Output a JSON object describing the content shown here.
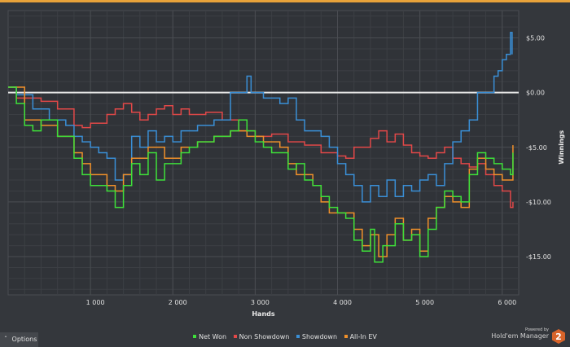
{
  "chart_data": {
    "type": "line",
    "xlabel": "Hands",
    "ylabel": "Winnings",
    "xlim": [
      0,
      6200
    ],
    "ylim": [
      -18.5,
      7.5
    ],
    "x_ticks": [
      {
        "v": 1000,
        "label": "1 000"
      },
      {
        "v": 2000,
        "label": "2 000"
      },
      {
        "v": 3000,
        "label": "3 000"
      },
      {
        "v": 4000,
        "label": "4 000"
      },
      {
        "v": 5000,
        "label": "5 000"
      },
      {
        "v": 6000,
        "label": "6 000"
      }
    ],
    "y_ticks": [
      {
        "v": 5,
        "label": "$5.00"
      },
      {
        "v": 0,
        "label": "$0.00"
      },
      {
        "v": -5,
        "label": "-$5.00"
      },
      {
        "v": -10,
        "label": "-$10.00"
      },
      {
        "v": -15,
        "label": "-$15.00"
      }
    ],
    "grid": true,
    "zero_line": true,
    "legend_position": "bottom",
    "series": [
      {
        "name": "Non Showdown",
        "color": "#e24848",
        "x": [
          0,
          100,
          200,
          400,
          600,
          800,
          900,
          1000,
          1200,
          1300,
          1400,
          1500,
          1600,
          1700,
          1800,
          1900,
          2000,
          2100,
          2200,
          2400,
          2600,
          2800,
          3000,
          3200,
          3400,
          3600,
          3800,
          4000,
          4100,
          4200,
          4400,
          4500,
          4600,
          4700,
          4800,
          4900,
          5000,
          5100,
          5200,
          5300,
          5400,
          5500,
          5600,
          5700,
          5800,
          5900,
          6000,
          6100,
          6130
        ],
        "y": [
          0.5,
          -0.5,
          -0.5,
          -0.8,
          -1.5,
          -3,
          -3.2,
          -2.8,
          -2,
          -1.5,
          -1,
          -1.8,
          -2.5,
          -2,
          -1.5,
          -1.2,
          -2,
          -1.5,
          -2,
          -1.8,
          -2.5,
          -3.5,
          -4,
          -3.8,
          -4.5,
          -4.8,
          -5.5,
          -5.8,
          -6,
          -5,
          -4.2,
          -3.5,
          -4.5,
          -3.8,
          -4.8,
          -5.5,
          -5.8,
          -6,
          -5.5,
          -5,
          -6,
          -6.5,
          -6.8,
          -6.5,
          -7.5,
          -8.5,
          -9,
          -10.5,
          -10
        ]
      },
      {
        "name": "Showdown",
        "color": "#3a8fd6",
        "x": [
          0,
          100,
          300,
          500,
          700,
          800,
          900,
          1000,
          1100,
          1200,
          1300,
          1400,
          1500,
          1600,
          1700,
          1800,
          1900,
          2000,
          2100,
          2300,
          2500,
          2600,
          2700,
          2800,
          2900,
          2950,
          3100,
          3300,
          3400,
          3500,
          3600,
          3800,
          3900,
          4000,
          4100,
          4200,
          4300,
          4400,
          4500,
          4600,
          4700,
          4800,
          4900,
          5000,
          5100,
          5200,
          5300,
          5400,
          5500,
          5600,
          5700,
          5800,
          5900,
          5950,
          6000,
          6050,
          6100,
          6120
        ],
        "y": [
          0.5,
          -0.2,
          -1.5,
          -2.5,
          -3,
          -4,
          -4.5,
          -5,
          -5.5,
          -6,
          -8,
          -7.5,
          -4,
          -5,
          -3.5,
          -4.5,
          -4,
          -4.5,
          -3.5,
          -3,
          -2.5,
          -2.5,
          0,
          0,
          1.5,
          0,
          -0.5,
          -1,
          -0.5,
          -2.5,
          -3.5,
          -4,
          -5,
          -6.5,
          -7.5,
          -8.5,
          -10,
          -8.5,
          -9.5,
          -8,
          -9.5,
          -8.5,
          -9,
          -8,
          -7.5,
          -8.5,
          -6.5,
          -4.5,
          -3.5,
          -2.5,
          0,
          0,
          1.5,
          2,
          3,
          3.5,
          5.5,
          3.5
        ]
      },
      {
        "name": "All-In EV",
        "color": "#f0902a",
        "x": [
          0,
          200,
          400,
          600,
          800,
          900,
          1000,
          1200,
          1300,
          1400,
          1500,
          1700,
          1900,
          2100,
          2300,
          2500,
          2700,
          2900,
          3100,
          3300,
          3400,
          3500,
          3700,
          3800,
          3900,
          4000,
          4200,
          4300,
          4400,
          4500,
          4600,
          4700,
          4800,
          4900,
          5000,
          5100,
          5200,
          5300,
          5400,
          5500,
          5600,
          5700,
          5800,
          5900,
          6000,
          6100,
          6130
        ],
        "y": [
          0.5,
          -2.5,
          -3,
          -4,
          -5.5,
          -6.5,
          -7.5,
          -8.5,
          -9,
          -7.5,
          -6,
          -5,
          -6,
          -5,
          -4.5,
          -4,
          -3.5,
          -4,
          -4.5,
          -5,
          -6.5,
          -7.5,
          -8.5,
          -10,
          -11,
          -11,
          -12.5,
          -14,
          -13,
          -15,
          -13,
          -11.5,
          -13.5,
          -12.5,
          -14.5,
          -11.5,
          -10.5,
          -9.5,
          -10,
          -10.5,
          -7,
          -6,
          -7,
          -7.5,
          -8,
          -8,
          -4.8
        ]
      },
      {
        "name": "Net Won",
        "color": "#3ee03a",
        "x": [
          0,
          100,
          200,
          300,
          400,
          600,
          800,
          900,
          1000,
          1100,
          1200,
          1300,
          1400,
          1500,
          1600,
          1700,
          1800,
          1900,
          2000,
          2100,
          2200,
          2300,
          2500,
          2700,
          2800,
          2900,
          3000,
          3100,
          3200,
          3300,
          3400,
          3500,
          3600,
          3700,
          3800,
          3900,
          4000,
          4100,
          4200,
          4300,
          4400,
          4450,
          4550,
          4700,
          4800,
          4900,
          5000,
          5100,
          5200,
          5300,
          5400,
          5500,
          5600,
          5700,
          5800,
          5900,
          6000,
          6100,
          6130
        ],
        "y": [
          0.5,
          -1,
          -3,
          -3.5,
          -2.5,
          -4,
          -6,
          -7.5,
          -8.5,
          -8.5,
          -9,
          -10.5,
          -8.5,
          -6.5,
          -7.5,
          -5.5,
          -8,
          -6.5,
          -6.5,
          -5.5,
          -5,
          -4.5,
          -4,
          -3.5,
          -2.5,
          -3.5,
          -4.5,
          -5,
          -5.5,
          -5.5,
          -7,
          -6.5,
          -8,
          -8.5,
          -9.5,
          -10.5,
          -11,
          -11.5,
          -13.5,
          -14.5,
          -12.5,
          -15.5,
          -14,
          -12,
          -13.5,
          -13,
          -15,
          -12.5,
          -10.5,
          -9,
          -9.5,
          -10,
          -7.5,
          -5.5,
          -6,
          -6.5,
          -7,
          -7.5,
          -5.5
        ]
      }
    ]
  },
  "legend": [
    "Net Won",
    "Non Showdown",
    "Showdown",
    "All-In EV"
  ],
  "options_label": "Options",
  "brand": {
    "powered_by": "Powered by",
    "name": "Hold'em Manager",
    "logo_text": "2"
  }
}
